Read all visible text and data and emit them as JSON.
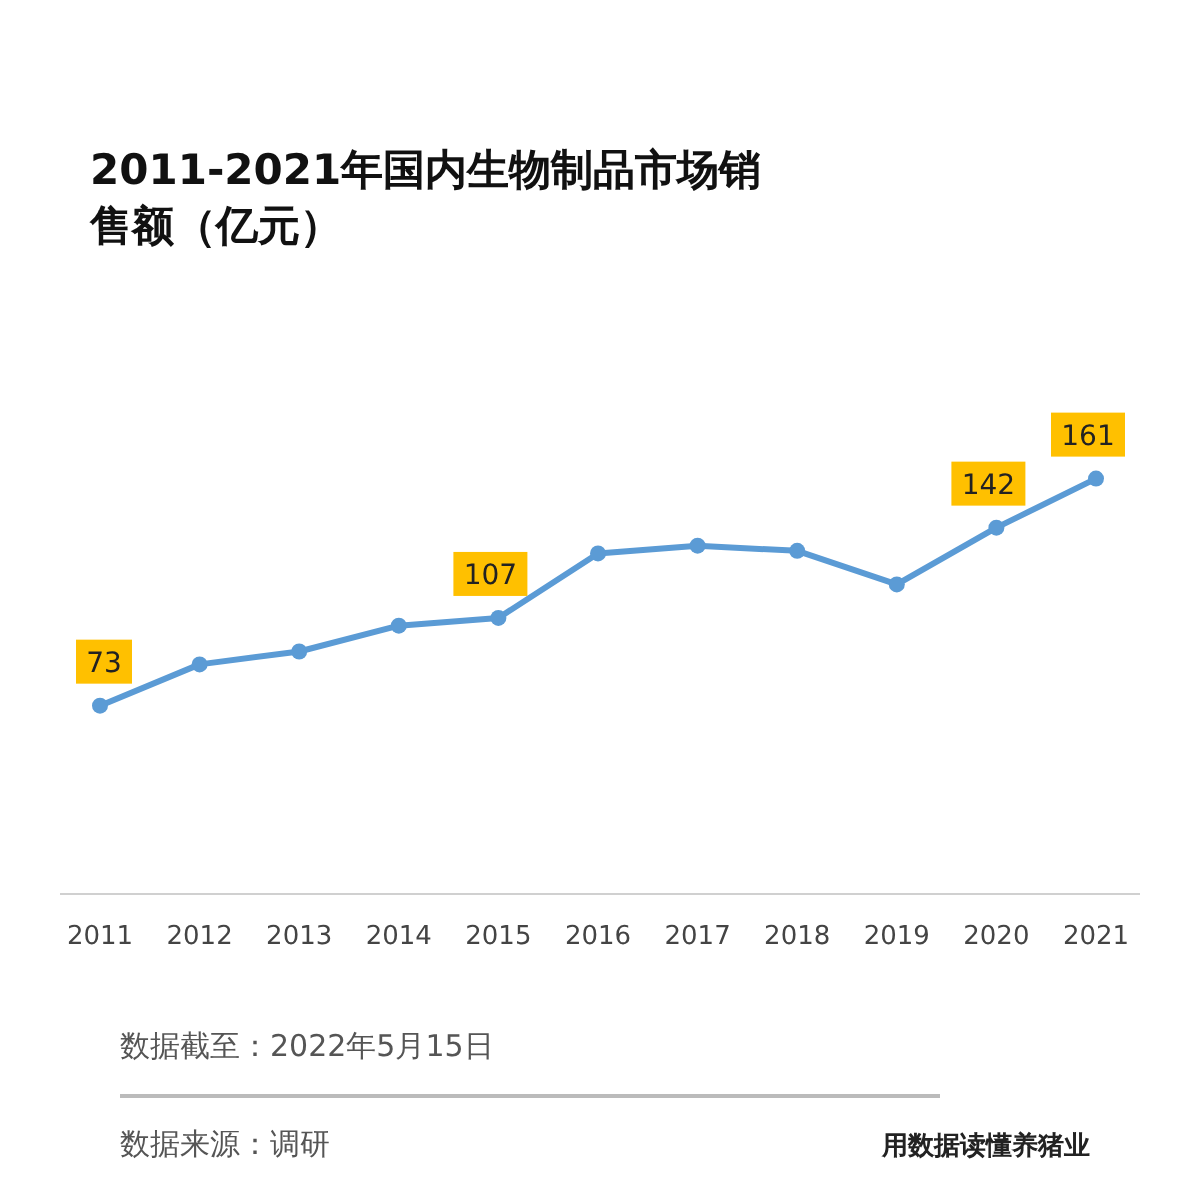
{
  "chart_data": {
    "type": "line",
    "title": "2011-2021年国内生物制品市场销售额（亿元）",
    "categories": [
      "2011",
      "2012",
      "2013",
      "2014",
      "2015",
      "2016",
      "2017",
      "2018",
      "2019",
      "2020",
      "2021"
    ],
    "series": [
      {
        "color": "#5b9bd5",
        "values": [
          73,
          89,
          94,
          104,
          107,
          132,
          135,
          133,
          120,
          142,
          161
        ],
        "value_labels": [
          "73",
          null,
          null,
          null,
          "107",
          null,
          null,
          null,
          null,
          "142",
          "161"
        ]
      }
    ],
    "marker": "circle",
    "line_style": "solid",
    "annotations": [
      "数据截至：2022年5月15日",
      "数据来源：调研",
      "用数据读懂养猪业"
    ]
  }
}
